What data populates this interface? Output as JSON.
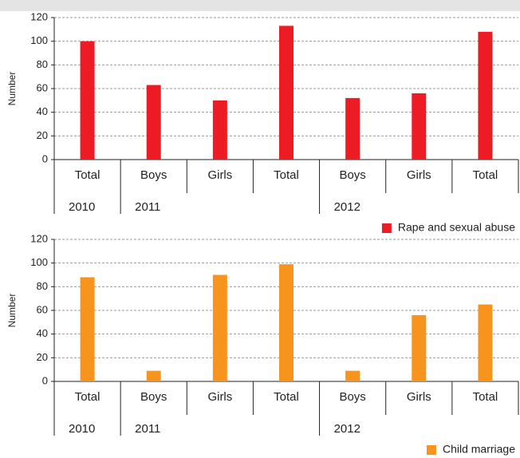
{
  "chart_data": [
    {
      "type": "bar",
      "y_label": "Number",
      "categories": [
        "Total",
        "Boys",
        "Girls",
        "Total",
        "Boys",
        "Girls",
        "Total"
      ],
      "group_labels": [
        "2010",
        "2011",
        null,
        null,
        "2012",
        null,
        null
      ],
      "series": [
        {
          "name": "Rape and sexual abuse",
          "color": "#ed1c24",
          "values": [
            100,
            63,
            50,
            113,
            52,
            56,
            108
          ]
        }
      ],
      "ylim": [
        0,
        120
      ],
      "yticks": [
        0,
        20,
        40,
        60,
        80,
        100,
        120
      ],
      "grid": true
    },
    {
      "type": "bar",
      "y_label": "Number",
      "categories": [
        "Total",
        "Boys",
        "Girls",
        "Total",
        "Boys",
        "Girls",
        "Total"
      ],
      "group_labels": [
        "2010",
        "2011",
        null,
        null,
        "2012",
        null,
        null
      ],
      "series": [
        {
          "name": "Child marriage",
          "color": "#f7941d",
          "values": [
            88,
            9,
            90,
            99,
            9,
            56,
            65
          ]
        }
      ],
      "ylim": [
        0,
        120
      ],
      "yticks": [
        0,
        20,
        40,
        60,
        80,
        100,
        120
      ],
      "grid": true
    }
  ]
}
